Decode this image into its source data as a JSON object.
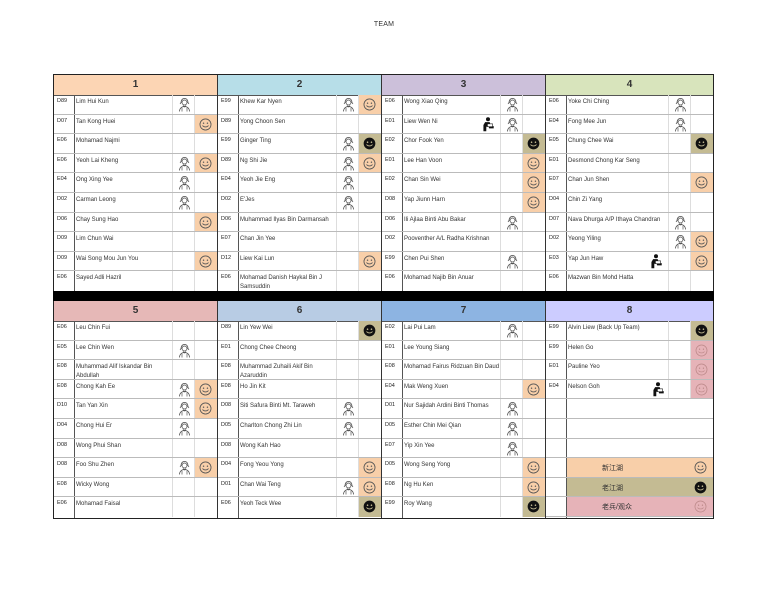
{
  "title": "TEAM",
  "colors": {
    "header_1": "#fcd5b4",
    "header_2": "#b7dee8",
    "header_3": "#ccc0da",
    "header_4": "#d8e4bc",
    "header_5": "#e6b8b7",
    "header_6": "#b8cce4",
    "header_7": "#8db4e2",
    "header_8": "#ccccff",
    "new_jianghu": "#f8cfa9",
    "old_jianghu": "#c4bb93",
    "veteran": "#e6b3b8"
  },
  "teams": [
    {
      "number": "1",
      "members": [
        {
          "code": "D89",
          "name": "Lim Hui Kun",
          "female": true,
          "status": ""
        },
        {
          "code": "D07",
          "name": "Tan Kong Huei",
          "female": false,
          "status": "happy"
        },
        {
          "code": "E06",
          "name": "Mohamad Najmi",
          "female": false,
          "status": ""
        },
        {
          "code": "E06",
          "name": "Yeoh Lai Kheng",
          "female": true,
          "status": "happy"
        },
        {
          "code": "E04",
          "name": "Ong Xing Yee",
          "female": true,
          "status": ""
        },
        {
          "code": "D02",
          "name": "Carman Leong",
          "female": true,
          "status": ""
        },
        {
          "code": "D06",
          "name": "Chay Sung Hao",
          "female": false,
          "status": "happy"
        },
        {
          "code": "D09",
          "name": "Lim Chun Wai",
          "female": false,
          "status": ""
        },
        {
          "code": "D09",
          "name": "Wai Song Mou Jun You",
          "female": false,
          "status": "happy"
        },
        {
          "code": "E06",
          "name": "Sayed Adli Hazril",
          "female": false,
          "status": ""
        }
      ]
    },
    {
      "number": "2",
      "members": [
        {
          "code": "E99",
          "name": "Khew Kar Nyen",
          "female": true,
          "status": "happy"
        },
        {
          "code": "D89",
          "name": "Yong Choon Sen",
          "female": false,
          "status": ""
        },
        {
          "code": "E99",
          "name": "Ginger Ting",
          "female": true,
          "status": "dark"
        },
        {
          "code": "D89",
          "name": "Ng Shi Jie",
          "female": true,
          "status": "happy"
        },
        {
          "code": "E04",
          "name": "Yeoh Jie Eng",
          "female": true,
          "status": ""
        },
        {
          "code": "D02",
          "name": "E'Jes",
          "female": true,
          "status": ""
        },
        {
          "code": "D06",
          "name": "Muhammad Ilyas Bin Darmansah",
          "female": false,
          "status": ""
        },
        {
          "code": "E07",
          "name": "Chan Jin Yee",
          "female": false,
          "status": ""
        },
        {
          "code": "D12",
          "name": "Liew Kai Lun",
          "female": false,
          "status": "happy"
        },
        {
          "code": "E06",
          "name": "Mohamad Danish Haykal Bin J Samsuddin",
          "female": false,
          "status": ""
        }
      ]
    },
    {
      "number": "3",
      "members": [
        {
          "code": "E06",
          "name": "Wong Xiao Qing",
          "female": true,
          "status": ""
        },
        {
          "code": "E01",
          "name": "Liew Wen Ni",
          "female": true,
          "status": "",
          "disabled": true
        },
        {
          "code": "E02",
          "name": "Chor Fook Yen",
          "female": false,
          "status": "dark"
        },
        {
          "code": "E01",
          "name": "Lee Han Voon",
          "female": false,
          "status": "happy"
        },
        {
          "code": "E02",
          "name": "Chan Sin Wei",
          "female": false,
          "status": "happy"
        },
        {
          "code": "D08",
          "name": "Yap Jiunn Harn",
          "female": false,
          "status": "happy"
        },
        {
          "code": "D06",
          "name": "Ili Ajlaa Binti Abu Bakar",
          "female": true,
          "status": ""
        },
        {
          "code": "D02",
          "name": "Pooventher A/L Radha Krishnan",
          "female": false,
          "status": ""
        },
        {
          "code": "E99",
          "name": "Chen Pui Shen",
          "female": true,
          "status": ""
        },
        {
          "code": "E06",
          "name": "Mohamad Najib Bin Anuar",
          "female": false,
          "status": ""
        }
      ]
    },
    {
      "number": "4",
      "members": [
        {
          "code": "E06",
          "name": "Yoke Chi Ching",
          "female": true,
          "status": ""
        },
        {
          "code": "E04",
          "name": "Fong Mee Jun",
          "female": true,
          "status": ""
        },
        {
          "code": "E05",
          "name": "Chung Chee Wai",
          "female": false,
          "status": "dark"
        },
        {
          "code": "E01",
          "name": "Desmond Chong Kar Seng",
          "female": false,
          "status": ""
        },
        {
          "code": "E07",
          "name": "Chan Jun Shen",
          "female": false,
          "status": "happy"
        },
        {
          "code": "D04",
          "name": "Chin Zi Yang",
          "female": false,
          "status": ""
        },
        {
          "code": "D07",
          "name": "Nava Dhurga A/P Ithaya Chandran",
          "female": true,
          "status": ""
        },
        {
          "code": "D02",
          "name": "Yeong Yiling",
          "female": true,
          "status": "happy"
        },
        {
          "code": "E03",
          "name": "Yap Jun Haw",
          "female": false,
          "status": "happy",
          "disabled": true
        },
        {
          "code": "E06",
          "name": "Mazwan Bin Mohd Hatta",
          "female": false,
          "status": ""
        }
      ]
    },
    {
      "number": "5",
      "members": [
        {
          "code": "E06",
          "name": "Leu Chin Fui",
          "female": false,
          "status": ""
        },
        {
          "code": "E05",
          "name": "Lee Chin Wen",
          "female": true,
          "status": ""
        },
        {
          "code": "E08",
          "name": "Muhammad Alif Iskandar Bin Abdullah",
          "female": false,
          "status": ""
        },
        {
          "code": "E08",
          "name": "Chong Kah Ee",
          "female": true,
          "status": "happy"
        },
        {
          "code": "D10",
          "name": "Tan Yan Xin",
          "female": true,
          "status": "happy"
        },
        {
          "code": "D04",
          "name": "Chong Hui Er",
          "female": true,
          "status": ""
        },
        {
          "code": "D08",
          "name": "Wong Phui Shan",
          "female": false,
          "status": ""
        },
        {
          "code": "D08",
          "name": "Foo Shu Zhen",
          "female": true,
          "status": "happy"
        },
        {
          "code": "E08",
          "name": "Wicky Wong",
          "female": false,
          "status": ""
        },
        {
          "code": "E06",
          "name": "Mohamad Faisal",
          "female": false,
          "status": ""
        }
      ]
    },
    {
      "number": "6",
      "members": [
        {
          "code": "D89",
          "name": "Lin Yew Wei",
          "female": false,
          "status": "dark"
        },
        {
          "code": "E01",
          "name": "Chong Chee Cheong",
          "female": false,
          "status": ""
        },
        {
          "code": "E08",
          "name": "Muhammad Zuhaili Akif Bin Azaruddin",
          "female": false,
          "status": ""
        },
        {
          "code": "E08",
          "name": "Ho Jin Kit",
          "female": false,
          "status": ""
        },
        {
          "code": "D08",
          "name": "Siti Safura Binti Mt. Taraweh",
          "female": true,
          "status": ""
        },
        {
          "code": "D05",
          "name": "Charlton Chong Zhi Lin",
          "female": true,
          "status": ""
        },
        {
          "code": "D08",
          "name": "Wong Kah Hao",
          "female": false,
          "status": ""
        },
        {
          "code": "D04",
          "name": "Fong Yeou Yong",
          "female": false,
          "status": "happy"
        },
        {
          "code": "D01",
          "name": "Chan Wai Teng",
          "female": true,
          "status": "happy"
        },
        {
          "code": "E06",
          "name": "Yeoh Teck Wee",
          "female": false,
          "status": "dark"
        }
      ]
    },
    {
      "number": "7",
      "members": [
        {
          "code": "E02",
          "name": "Lai Pui Lam",
          "female": true,
          "status": ""
        },
        {
          "code": "E01",
          "name": "Lee Young Siang",
          "female": false,
          "status": ""
        },
        {
          "code": "E08",
          "name": "Mohamad Fairus Ridzuan Bin Daud",
          "female": false,
          "status": ""
        },
        {
          "code": "E04",
          "name": "Mak Weng Xuen",
          "female": false,
          "status": "happy"
        },
        {
          "code": "D01",
          "name": "Nur Sajidah Ardini Binti Thomas",
          "female": true,
          "status": ""
        },
        {
          "code": "D05",
          "name": "Esther Chin Mei Qian",
          "female": true,
          "status": ""
        },
        {
          "code": "E07",
          "name": "Yip Xin Yee",
          "female": true,
          "status": ""
        },
        {
          "code": "D05",
          "name": "Wong Seng Yong",
          "female": false,
          "status": "happy"
        },
        {
          "code": "E08",
          "name": "Ng Hu Ken",
          "female": false,
          "status": "happy"
        },
        {
          "code": "E99",
          "name": "Roy Wang",
          "female": false,
          "status": "dark"
        }
      ]
    },
    {
      "number": "8",
      "members": [
        {
          "code": "E99",
          "name": "Alvin Liew (Back Up Team)",
          "female": false,
          "status": "dark"
        },
        {
          "code": "E99",
          "name": "Helen Go",
          "female": false,
          "status": "pink"
        },
        {
          "code": "E01",
          "name": "Pauline Yeo",
          "female": false,
          "status": "pink"
        },
        {
          "code": "E04",
          "name": "Nelson Goh",
          "female": false,
          "status": "pink",
          "disabled": true
        }
      ]
    }
  ],
  "legend": [
    {
      "label": "新江湖",
      "status": "happy"
    },
    {
      "label": "老江湖",
      "status": "dark"
    },
    {
      "label": "老兵/观众",
      "status": "pink"
    }
  ]
}
